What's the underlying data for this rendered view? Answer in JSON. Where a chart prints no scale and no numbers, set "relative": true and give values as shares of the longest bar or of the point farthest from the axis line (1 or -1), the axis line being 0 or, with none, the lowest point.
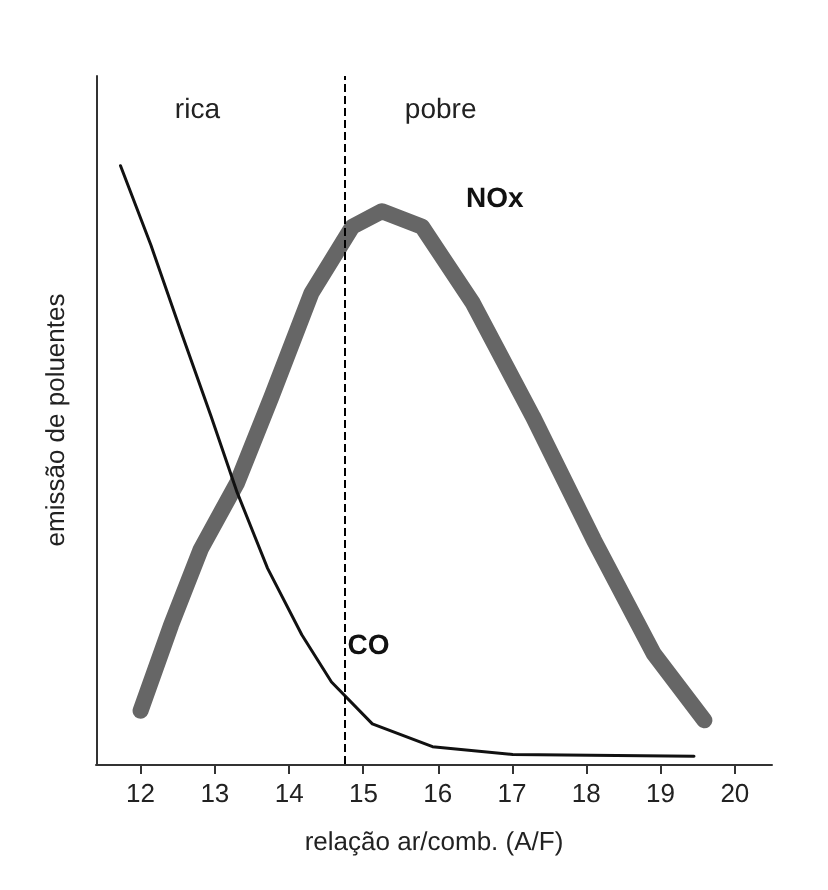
{
  "chart_data": {
    "type": "line",
    "relative": true,
    "xlabel": "relação ar/comb. (A/F)",
    "ylabel": "emissão de poluentes",
    "xlim": [
      11.4,
      20.5
    ],
    "xticks": [
      12,
      13,
      14,
      15,
      16,
      17,
      18,
      19,
      20
    ],
    "grid": false,
    "legend": false,
    "marker": "none",
    "annotations": [
      "rica",
      "pobre"
    ],
    "ref_lines": [
      {
        "axis": "x",
        "value": 14.75,
        "line_style": "dashed",
        "color": "#000000"
      }
    ],
    "series": [
      {
        "name": "CO",
        "color": "#111111",
        "x": [
          11.73,
          12.14,
          12.54,
          12.95,
          13.3,
          13.71,
          14.17,
          14.57,
          15.12,
          15.93,
          17.01,
          19.45
        ],
        "values": [
          1,
          0.867,
          0.724,
          0.581,
          0.454,
          0.327,
          0.216,
          0.137,
          0.067,
          0.029,
          0.016,
          0.013
        ]
      },
      {
        "name": "NOx",
        "color": "#666666",
        "x": [
          12,
          12.41,
          12.81,
          13.3,
          13.76,
          14.3,
          14.85,
          15.25,
          15.79,
          16.47,
          17.28,
          18.1,
          18.91,
          19.59
        ],
        "values": [
          0.089,
          0.232,
          0.359,
          0.47,
          0.613,
          0.787,
          0.898,
          0.924,
          0.898,
          0.771,
          0.581,
          0.375,
          0.184,
          0.073
        ]
      }
    ]
  }
}
